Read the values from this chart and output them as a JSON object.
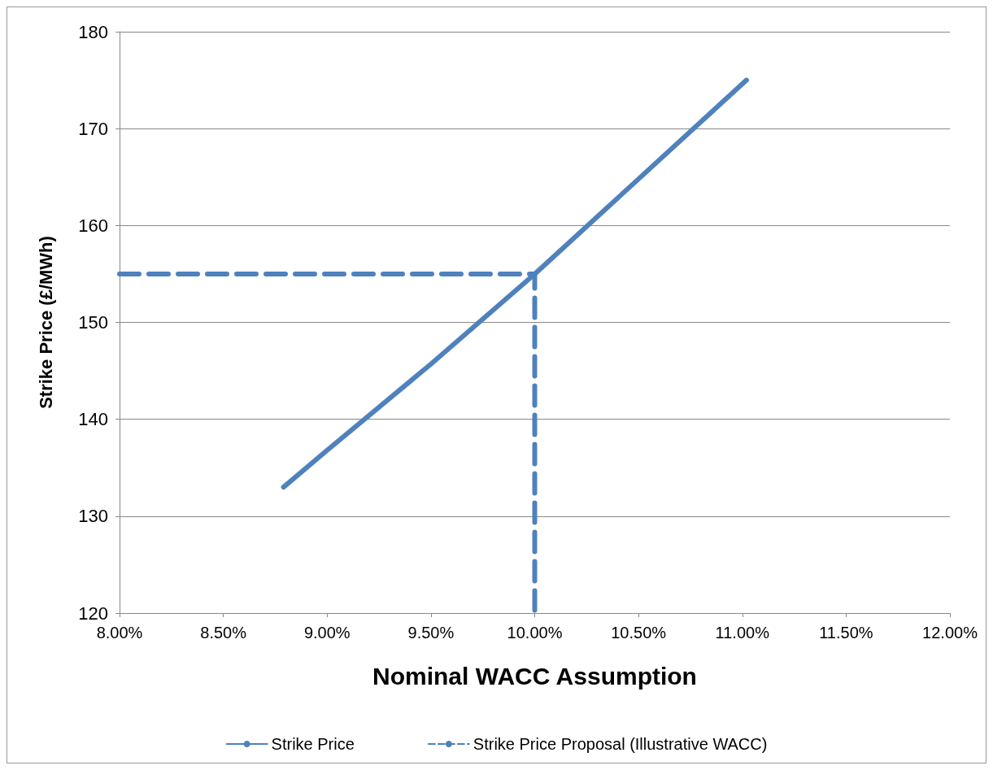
{
  "chart_data": {
    "type": "line",
    "xlabel": "Nominal WACC Assumption",
    "ylabel": "Strike Price (£/MWh)",
    "xlim": [
      8,
      12
    ],
    "xticks": [
      {
        "value": 8,
        "label": "8.00%"
      },
      {
        "value": 8.5,
        "label": "8.50%"
      },
      {
        "value": 9,
        "label": "9.00%"
      },
      {
        "value": 9.5,
        "label": "9.50%"
      },
      {
        "value": 10,
        "label": "10.00%"
      },
      {
        "value": 10.5,
        "label": "10.50%"
      },
      {
        "value": 11,
        "label": "11.00%"
      },
      {
        "value": 11.5,
        "label": "11.50%"
      },
      {
        "value": 12,
        "label": "12.00%"
      }
    ],
    "ylim": [
      120,
      180
    ],
    "yticks": [
      120,
      130,
      140,
      150,
      160,
      170,
      180
    ],
    "grid": "y",
    "legend": "bottom",
    "marker": "none",
    "series": [
      {
        "name": "Strike Price",
        "color": "#4f81bd",
        "line_style": "solid",
        "x": [
          8.79,
          9.0,
          9.5,
          10.0,
          10.5,
          11.02
        ],
        "values": [
          133,
          136.8,
          145.7,
          155,
          164.8,
          175
        ]
      },
      {
        "name": "Strike Price Proposal (Illustrative WACC)",
        "color": "#4f81bd",
        "line_style": "dashed",
        "x": [
          8,
          10,
          10
        ],
        "values": [
          155,
          155,
          120
        ]
      }
    ]
  }
}
